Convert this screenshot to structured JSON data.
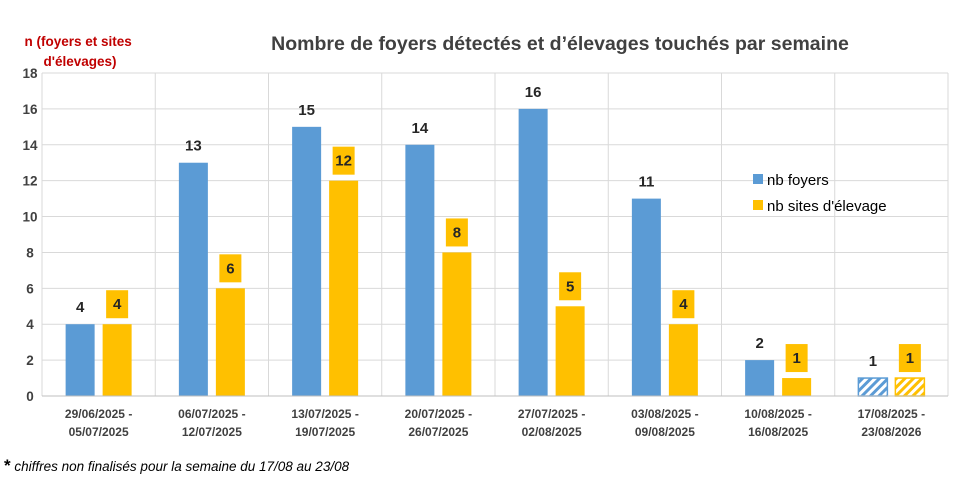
{
  "chart_data": {
    "type": "bar",
    "title": "Nombre de foyers détectés et d’élevages touchés par semaine",
    "ylabel": "n (foyers et sites d'élevages)",
    "ylim": [
      0,
      18
    ],
    "yticks": [
      0,
      2,
      4,
      6,
      8,
      10,
      12,
      14,
      16,
      18
    ],
    "grid": true,
    "legend_position": "right",
    "categories": [
      [
        "29/06/2025 -",
        "05/07/2025"
      ],
      [
        "06/07/2025 -",
        "12/07/2025"
      ],
      [
        "13/07/2025 -",
        "19/07/2025"
      ],
      [
        "20/07/2025 -",
        "26/07/2025"
      ],
      [
        "27/07/2025 -",
        "02/08/2025"
      ],
      [
        "03/08/2025 -",
        "09/08/2025"
      ],
      [
        "10/08/2025 -",
        "16/08/2025"
      ],
      [
        "17/08/2025 -",
        "23/08/2026"
      ]
    ],
    "series": [
      {
        "name": "nb foyers",
        "color": "#5b9bd5",
        "values": [
          4,
          13,
          15,
          14,
          16,
          11,
          2,
          1
        ]
      },
      {
        "name": "nb sites d'élevage",
        "color": "#ffc000",
        "values": [
          4,
          6,
          12,
          8,
          5,
          4,
          1,
          1
        ]
      }
    ],
    "hatched_categories": [
      7
    ],
    "ylabel_color": "#c00000",
    "title_color": "#404040"
  },
  "footnote": {
    "marker": "*",
    "text": " chiffres non finalisés pour la semaine du 17/08 au 23/08"
  }
}
